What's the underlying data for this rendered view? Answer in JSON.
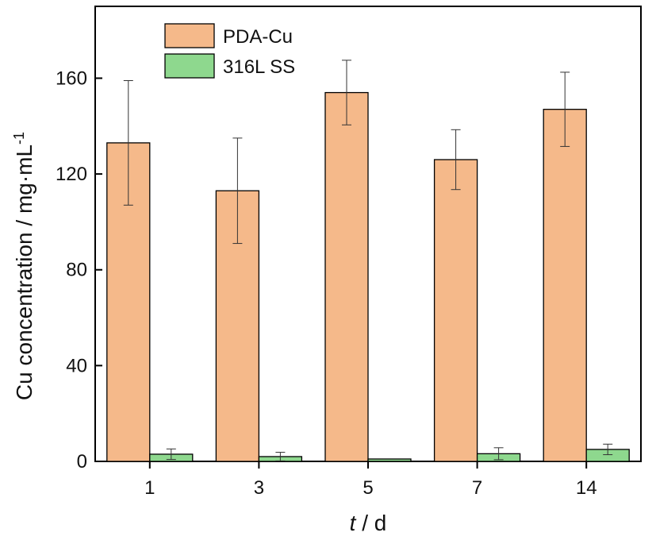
{
  "chart_data": {
    "type": "bar",
    "categories": [
      "1",
      "3",
      "5",
      "7",
      "14"
    ],
    "series": [
      {
        "name": "PDA-Cu",
        "values": [
          133,
          113,
          154,
          126,
          147
        ],
        "errors": [
          26,
          22,
          13.5,
          12.5,
          15.5
        ],
        "color": "#F5B98A"
      },
      {
        "name": "316L SS",
        "values": [
          3,
          2,
          1,
          3.2,
          5
        ],
        "errors": [
          2.2,
          1.8,
          0,
          2.5,
          2.2
        ],
        "color": "#8ED88E"
      }
    ],
    "xlabel": {
      "italic": "t",
      "rest": " / d"
    },
    "ylabel": {
      "main": "Cu concentration / mg·mL",
      "superscript": "-1"
    },
    "yticks": [
      0,
      40,
      80,
      120,
      160
    ],
    "ylim": [
      0,
      190
    ],
    "legend_position": "top-left"
  }
}
